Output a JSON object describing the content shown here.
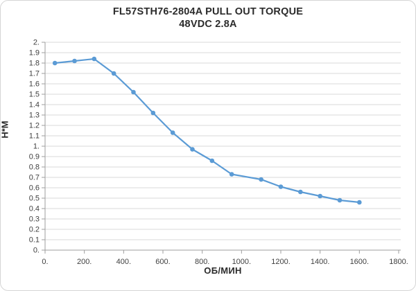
{
  "frame": {
    "background_color": "#ffffff",
    "border_color": "#d5d5d5"
  },
  "chart_data": {
    "type": "line",
    "title": "FL57STH76-2804A PULL OUT TORQUE",
    "subtitle": "48VDC 2.8A",
    "xlabel": "ОБ/МИН",
    "ylabel": "Н*М",
    "x": [
      50,
      150,
      250,
      350,
      450,
      550,
      650,
      750,
      850,
      950,
      1100,
      1200,
      1300,
      1400,
      1500,
      1600
    ],
    "y": [
      1.8,
      1.82,
      1.84,
      1.7,
      1.52,
      1.32,
      1.13,
      0.97,
      0.86,
      0.73,
      0.68,
      0.61,
      0.56,
      0.52,
      0.48,
      0.46
    ],
    "xlim": [
      0,
      1800
    ],
    "ylim": [
      0,
      2
    ],
    "x_tick_step": 200,
    "y_tick_step": 0.1,
    "x_tick_labels": [
      "0.",
      "200.",
      "400.",
      "600.",
      "800.",
      "1000.",
      "1200.",
      "1400.",
      "1600.",
      "1800."
    ],
    "y_tick_labels": [
      "0.",
      "0.1",
      "0.2",
      "0.3",
      "0.4",
      "0.5",
      "0.6",
      "0.7",
      "0.8",
      "0.9",
      "1.",
      "1.1",
      "1.2",
      "1.3",
      "1.4",
      "1.5",
      "1.6",
      "1.7",
      "1.8",
      "1.9",
      "2."
    ],
    "grid": "horizontal",
    "legend": "none",
    "line_color": "#5b9bd5",
    "marker": "circle",
    "marker_color": "#5b9bd5",
    "gridline_color": "#d9d9d9",
    "axis_color": "#9e9e9e",
    "tick_label_color": "#3f3f3f",
    "title_color": "#2b2b2b"
  }
}
